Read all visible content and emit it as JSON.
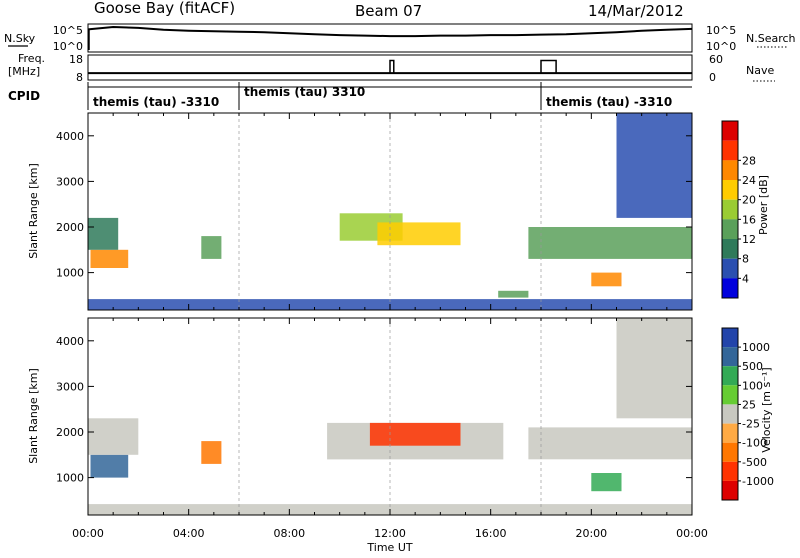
{
  "header": {
    "station": "Goose Bay (fitACF)",
    "beam": "Beam 07",
    "date": "14/Mar/2012"
  },
  "top_labels": {
    "nsky": "N.Sky",
    "nsearch": "N.Search",
    "freq_line1": "Freq.",
    "freq_line2": "[MHz]",
    "nave": "Nave",
    "cpid": "CPID"
  },
  "top_ticks": {
    "noise_left": [
      "10^5",
      "10^0"
    ],
    "noise_right": [
      "10^5",
      "10^0"
    ],
    "freq_left": [
      "18",
      "8"
    ],
    "freq_right": [
      "60",
      "0"
    ]
  },
  "cpid_segments": [
    {
      "label": "themis (tau) -3310",
      "start_hour": 0.0
    },
    {
      "label": "themis (tau) 3310",
      "start_hour": 6.0
    },
    {
      "label": "themis (tau) -3310",
      "start_hour": 18.0
    }
  ],
  "colors": {
    "power": [
      "#0000dd",
      "#2a4fb0",
      "#2f7a5a",
      "#5aa05a",
      "#9acc33",
      "#ffcc00",
      "#ff8800",
      "#ff3300",
      "#dd0000"
    ],
    "velocity": [
      "#2244aa",
      "#336699",
      "#33aa55",
      "#66cc33",
      "#c8c8c0",
      "#ffaa44",
      "#ff7700",
      "#ff3300",
      "#dd0000"
    ],
    "ground": "#c8c8c0"
  },
  "chart_data": [
    {
      "type": "line",
      "panel": "noise-frequency",
      "x_unit": "hour UT",
      "noise_sky_log10": [
        4.3,
        4.8,
        4.6,
        4.2,
        4.0,
        3.9,
        3.8,
        3.7,
        3.5,
        3.3,
        3.1,
        3.0,
        2.9,
        2.9,
        3.0,
        3.0,
        3.1,
        3.1,
        3.2,
        3.3,
        3.5,
        3.7,
        4.0,
        4.2,
        4.4
      ],
      "noise_hours": [
        0,
        1,
        2,
        3,
        4,
        5,
        6,
        7,
        8,
        9,
        10,
        11,
        12,
        13,
        14,
        15,
        16,
        17,
        18,
        19,
        20,
        21,
        22,
        23,
        24
      ],
      "freq_mhz": 10.3,
      "freq_ylim": [
        8,
        18
      ],
      "nave_spikes": [
        {
          "start_hour": 12.0,
          "end_hour": 12.15,
          "value": 50
        },
        {
          "start_hour": 18.0,
          "end_hour": 18.6,
          "value": 50
        }
      ],
      "nave_ylim": [
        0,
        60
      ]
    },
    {
      "type": "heatmap",
      "panel": "power",
      "title": "",
      "xlabel": "",
      "ylabel": "Slant Range [km]",
      "xlim": [
        0,
        24
      ],
      "ylim": [
        180,
        4500
      ],
      "yticks": [
        1000,
        2000,
        3000,
        4000
      ],
      "colorbar_label": "Power [dB]",
      "colorbar_ticks": [
        4,
        8,
        12,
        16,
        20,
        24,
        28
      ],
      "regions": [
        {
          "t0": 0.1,
          "t1": 1.6,
          "r0": 1100,
          "r1": 1500,
          "level": 6
        },
        {
          "t0": 0.0,
          "t1": 1.2,
          "r0": 1500,
          "r1": 2200,
          "level": 2
        },
        {
          "t0": 4.5,
          "t1": 5.3,
          "r0": 1300,
          "r1": 1800,
          "level": 3
        },
        {
          "t0": 10.0,
          "t1": 12.5,
          "r0": 1700,
          "r1": 2300,
          "level": 4
        },
        {
          "t0": 11.5,
          "t1": 14.8,
          "r0": 1600,
          "r1": 2100,
          "level": 5
        },
        {
          "t0": 16.3,
          "t1": 17.5,
          "r0": 450,
          "r1": 600,
          "level": 3
        },
        {
          "t0": 17.5,
          "t1": 24.0,
          "r0": 1300,
          "r1": 2000,
          "level": 3
        },
        {
          "t0": 20.0,
          "t1": 21.2,
          "r0": 700,
          "r1": 1000,
          "level": 6
        },
        {
          "t0": 21.0,
          "t1": 24.0,
          "r0": 2200,
          "r1": 4500,
          "level": 1
        },
        {
          "t0": 0.0,
          "t1": 24.0,
          "r0": 180,
          "r1": 420,
          "level": 1
        }
      ]
    },
    {
      "type": "heatmap",
      "panel": "velocity",
      "title": "",
      "xlabel": "Time UT",
      "ylabel": "Slant Range [km]",
      "xlim": [
        0,
        24
      ],
      "ylim": [
        180,
        4500
      ],
      "yticks": [
        1000,
        2000,
        3000,
        4000
      ],
      "xticks": [
        "00:00",
        "04:00",
        "08:00",
        "12:00",
        "16:00",
        "20:00",
        "00:00"
      ],
      "xtick_hours": [
        0,
        4,
        8,
        12,
        16,
        20,
        24
      ],
      "colorbar_label": "Velocity [m s⁻¹]",
      "colorbar_ticks": [
        "1000",
        "500",
        "100",
        "25",
        "-25",
        "-100",
        "-500",
        "-1000"
      ],
      "regions": [
        {
          "t0": 0.1,
          "t1": 1.6,
          "r0": 1000,
          "r1": 1500,
          "level": 1
        },
        {
          "t0": 0.0,
          "t1": 2.0,
          "r0": 1500,
          "r1": 2300,
          "level": 4
        },
        {
          "t0": 4.5,
          "t1": 5.3,
          "r0": 1300,
          "r1": 1800,
          "level": 6
        },
        {
          "t0": 9.5,
          "t1": 16.5,
          "r0": 1400,
          "r1": 2200,
          "level": 4
        },
        {
          "t0": 11.2,
          "t1": 14.8,
          "r0": 1700,
          "r1": 2200,
          "level": 7
        },
        {
          "t0": 17.5,
          "t1": 24.0,
          "r0": 1400,
          "r1": 2100,
          "level": 4
        },
        {
          "t0": 20.0,
          "t1": 21.2,
          "r0": 700,
          "r1": 1100,
          "level": 2
        },
        {
          "t0": 21.0,
          "t1": 24.0,
          "r0": 2300,
          "r1": 4500,
          "level": 4
        },
        {
          "t0": 0.0,
          "t1": 24.0,
          "r0": 180,
          "r1": 420,
          "level": 4
        }
      ]
    }
  ]
}
